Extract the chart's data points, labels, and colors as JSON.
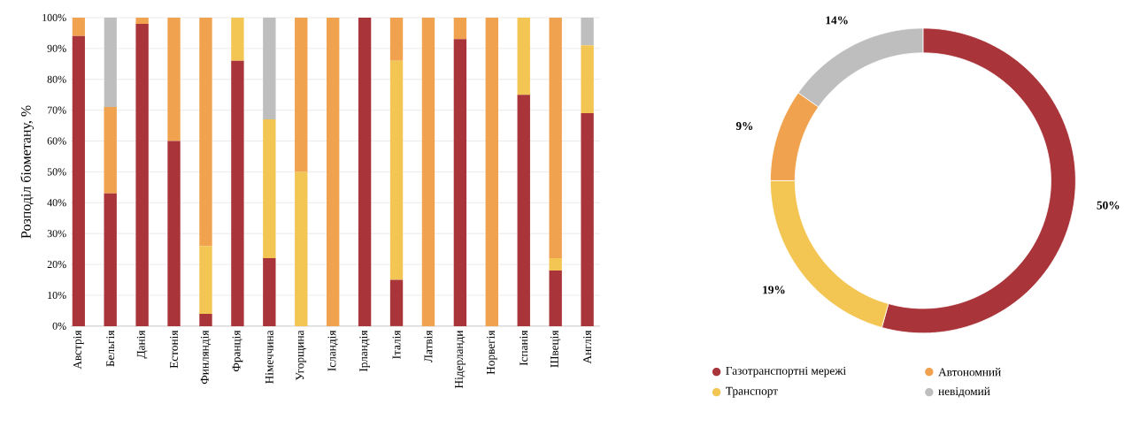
{
  "chart_data": [
    {
      "type": "bar",
      "stacked": true,
      "ylabel": "Розподіл біометану, %",
      "grid": "y",
      "categories": [
        "Австрія",
        "Бельгія",
        "Данія",
        "Естонія",
        "Финляндія",
        "Франція",
        "Німеччина",
        "Угорщина",
        "Ісландія",
        "Ірландія",
        "Італія",
        "Латвія",
        "Нідерланди",
        "Норвегія",
        "Іспанія",
        "Швеція",
        "Англія"
      ],
      "series": [
        {
          "color": "#a93439",
          "values": [
            94,
            43,
            98,
            60,
            4,
            86,
            22,
            0,
            0,
            100,
            15,
            0,
            93,
            0,
            75,
            18,
            69
          ]
        },
        {
          "color": "#f3c552",
          "values": [
            0,
            0,
            0,
            0,
            22,
            14,
            45,
            50,
            0,
            0,
            71,
            0,
            0,
            0,
            25,
            4,
            22
          ]
        },
        {
          "color": "#f1a24f",
          "values": [
            6,
            28,
            2,
            40,
            74,
            0,
            0,
            50,
            100,
            0,
            14,
            100,
            7,
            100,
            0,
            78,
            0
          ]
        },
        {
          "color": "#bebebe",
          "values": [
            0,
            29,
            0,
            0,
            0,
            0,
            33,
            0,
            0,
            0,
            0,
            0,
            0,
            0,
            0,
            0,
            9
          ]
        }
      ],
      "ylim": [
        0,
        100
      ],
      "yticks": [
        {
          "value": 0,
          "label": "0%"
        },
        {
          "value": 10,
          "label": "10%"
        },
        {
          "value": 20,
          "label": "20%"
        },
        {
          "value": 30,
          "label": "30%"
        },
        {
          "value": 40,
          "label": "40%"
        },
        {
          "value": 50,
          "label": "50%"
        },
        {
          "value": 60,
          "label": "60%"
        },
        {
          "value": 70,
          "label": "70%"
        },
        {
          "value": 80,
          "label": "80%"
        },
        {
          "value": 90,
          "label": "90%"
        },
        {
          "value": 100,
          "label": "100%"
        }
      ]
    },
    {
      "type": "donut",
      "legend": "bottom",
      "categories": [
        "Газотранспортні мережі",
        "Транспорт",
        "Автономний",
        "невідомий"
      ],
      "values": [
        50,
        19,
        9,
        14
      ],
      "colors": [
        "#a93439",
        "#f3c552",
        "#f1a24f",
        "#bebebe"
      ],
      "value_labels": [
        "50%",
        "19%",
        "9%",
        "14%"
      ]
    }
  ]
}
